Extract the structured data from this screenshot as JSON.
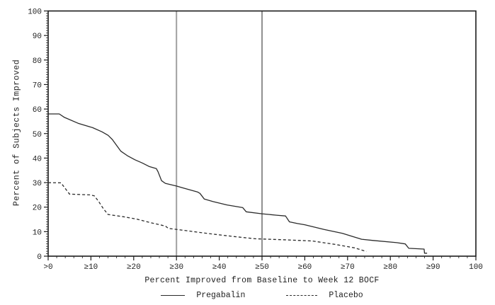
{
  "chart_data": {
    "type": "line",
    "title": "",
    "xlabel": "Percent Improved from Baseline to Week 12 BOCF",
    "ylabel": "Percent of Subjects Improved",
    "xlim": [
      0,
      100
    ],
    "ylim": [
      0,
      100
    ],
    "grid": false,
    "legend_position": "bottom",
    "x_tick_values": [
      0,
      10,
      20,
      30,
      40,
      50,
      60,
      70,
      80,
      90,
      100
    ],
    "x_tick_labels": [
      ">0",
      "≥10",
      "≥20",
      "≥30",
      "≥40",
      "≥50",
      "≥60",
      "≥70",
      "≥80",
      "≥90",
      "100"
    ],
    "y_tick_values": [
      0,
      10,
      20,
      30,
      40,
      50,
      60,
      70,
      80,
      90,
      100
    ],
    "y_tick_labels": [
      "0",
      "10",
      "20",
      "30",
      "40",
      "50",
      "60",
      "70",
      "80",
      "90",
      "100"
    ],
    "x_minor_step": 2,
    "y_minor_step": 1,
    "reference_lines_x": [
      30,
      50
    ],
    "series": [
      {
        "name": "Pregabalin",
        "style": "solid",
        "points": [
          [
            0,
            58
          ],
          [
            2.6,
            58
          ],
          [
            3.8,
            56.6
          ],
          [
            7,
            54.2
          ],
          [
            10.4,
            52.4
          ],
          [
            12.6,
            50.7
          ],
          [
            14,
            49.3
          ],
          [
            15,
            47.6
          ],
          [
            17,
            42.8
          ],
          [
            18.5,
            41
          ],
          [
            20.3,
            39.3
          ],
          [
            22,
            38
          ],
          [
            23.6,
            36.6
          ],
          [
            25.3,
            35.7
          ],
          [
            25.7,
            34.4
          ],
          [
            26.5,
            30.8
          ],
          [
            27.4,
            29.7
          ],
          [
            30,
            28.6
          ],
          [
            32,
            27.6
          ],
          [
            34.9,
            26.2
          ],
          [
            35.5,
            25.6
          ],
          [
            36.5,
            23.3
          ],
          [
            38.5,
            22.3
          ],
          [
            41.8,
            20.9
          ],
          [
            45.5,
            19.8
          ],
          [
            46.3,
            18.1
          ],
          [
            50,
            17.3
          ],
          [
            53.4,
            16.7
          ],
          [
            55.5,
            16.4
          ],
          [
            56.4,
            14
          ],
          [
            58.3,
            13.3
          ],
          [
            60,
            12.8
          ],
          [
            64.5,
            10.9
          ],
          [
            68.8,
            9.3
          ],
          [
            71.6,
            7.8
          ],
          [
            73.3,
            6.9
          ],
          [
            76,
            6.4
          ],
          [
            81.5,
            5.5
          ],
          [
            83.5,
            5
          ],
          [
            84.3,
            3.2
          ],
          [
            87.9,
            2.9
          ],
          [
            88,
            1.2
          ],
          [
            88.6,
            1.2
          ]
        ]
      },
      {
        "name": "Placebo",
        "style": "dashed",
        "points": [
          [
            0,
            30
          ],
          [
            3,
            29.9
          ],
          [
            5,
            25.3
          ],
          [
            9.9,
            25
          ],
          [
            10.8,
            24.6
          ],
          [
            11.8,
            22.3
          ],
          [
            12.9,
            19.4
          ],
          [
            14,
            17
          ],
          [
            17.5,
            16.1
          ],
          [
            20.8,
            15.1
          ],
          [
            24.1,
            13.6
          ],
          [
            27.4,
            12.3
          ],
          [
            28.1,
            11.3
          ],
          [
            31.9,
            10.5
          ],
          [
            33.6,
            10.1
          ],
          [
            38.5,
            9
          ],
          [
            43.5,
            8
          ],
          [
            48.4,
            7.1
          ],
          [
            55,
            6.7
          ],
          [
            61.7,
            6.2
          ],
          [
            67.1,
            4.8
          ],
          [
            71.6,
            3.4
          ],
          [
            74.4,
            1.9
          ]
        ]
      }
    ]
  },
  "colors": {
    "background": "#ffffff",
    "axis": "#1c1c1c",
    "tick_label": "#1e1e1e",
    "series_line": "#2b2b2b",
    "refline_30": "#a0a0a0",
    "refline_50": "#606060"
  }
}
